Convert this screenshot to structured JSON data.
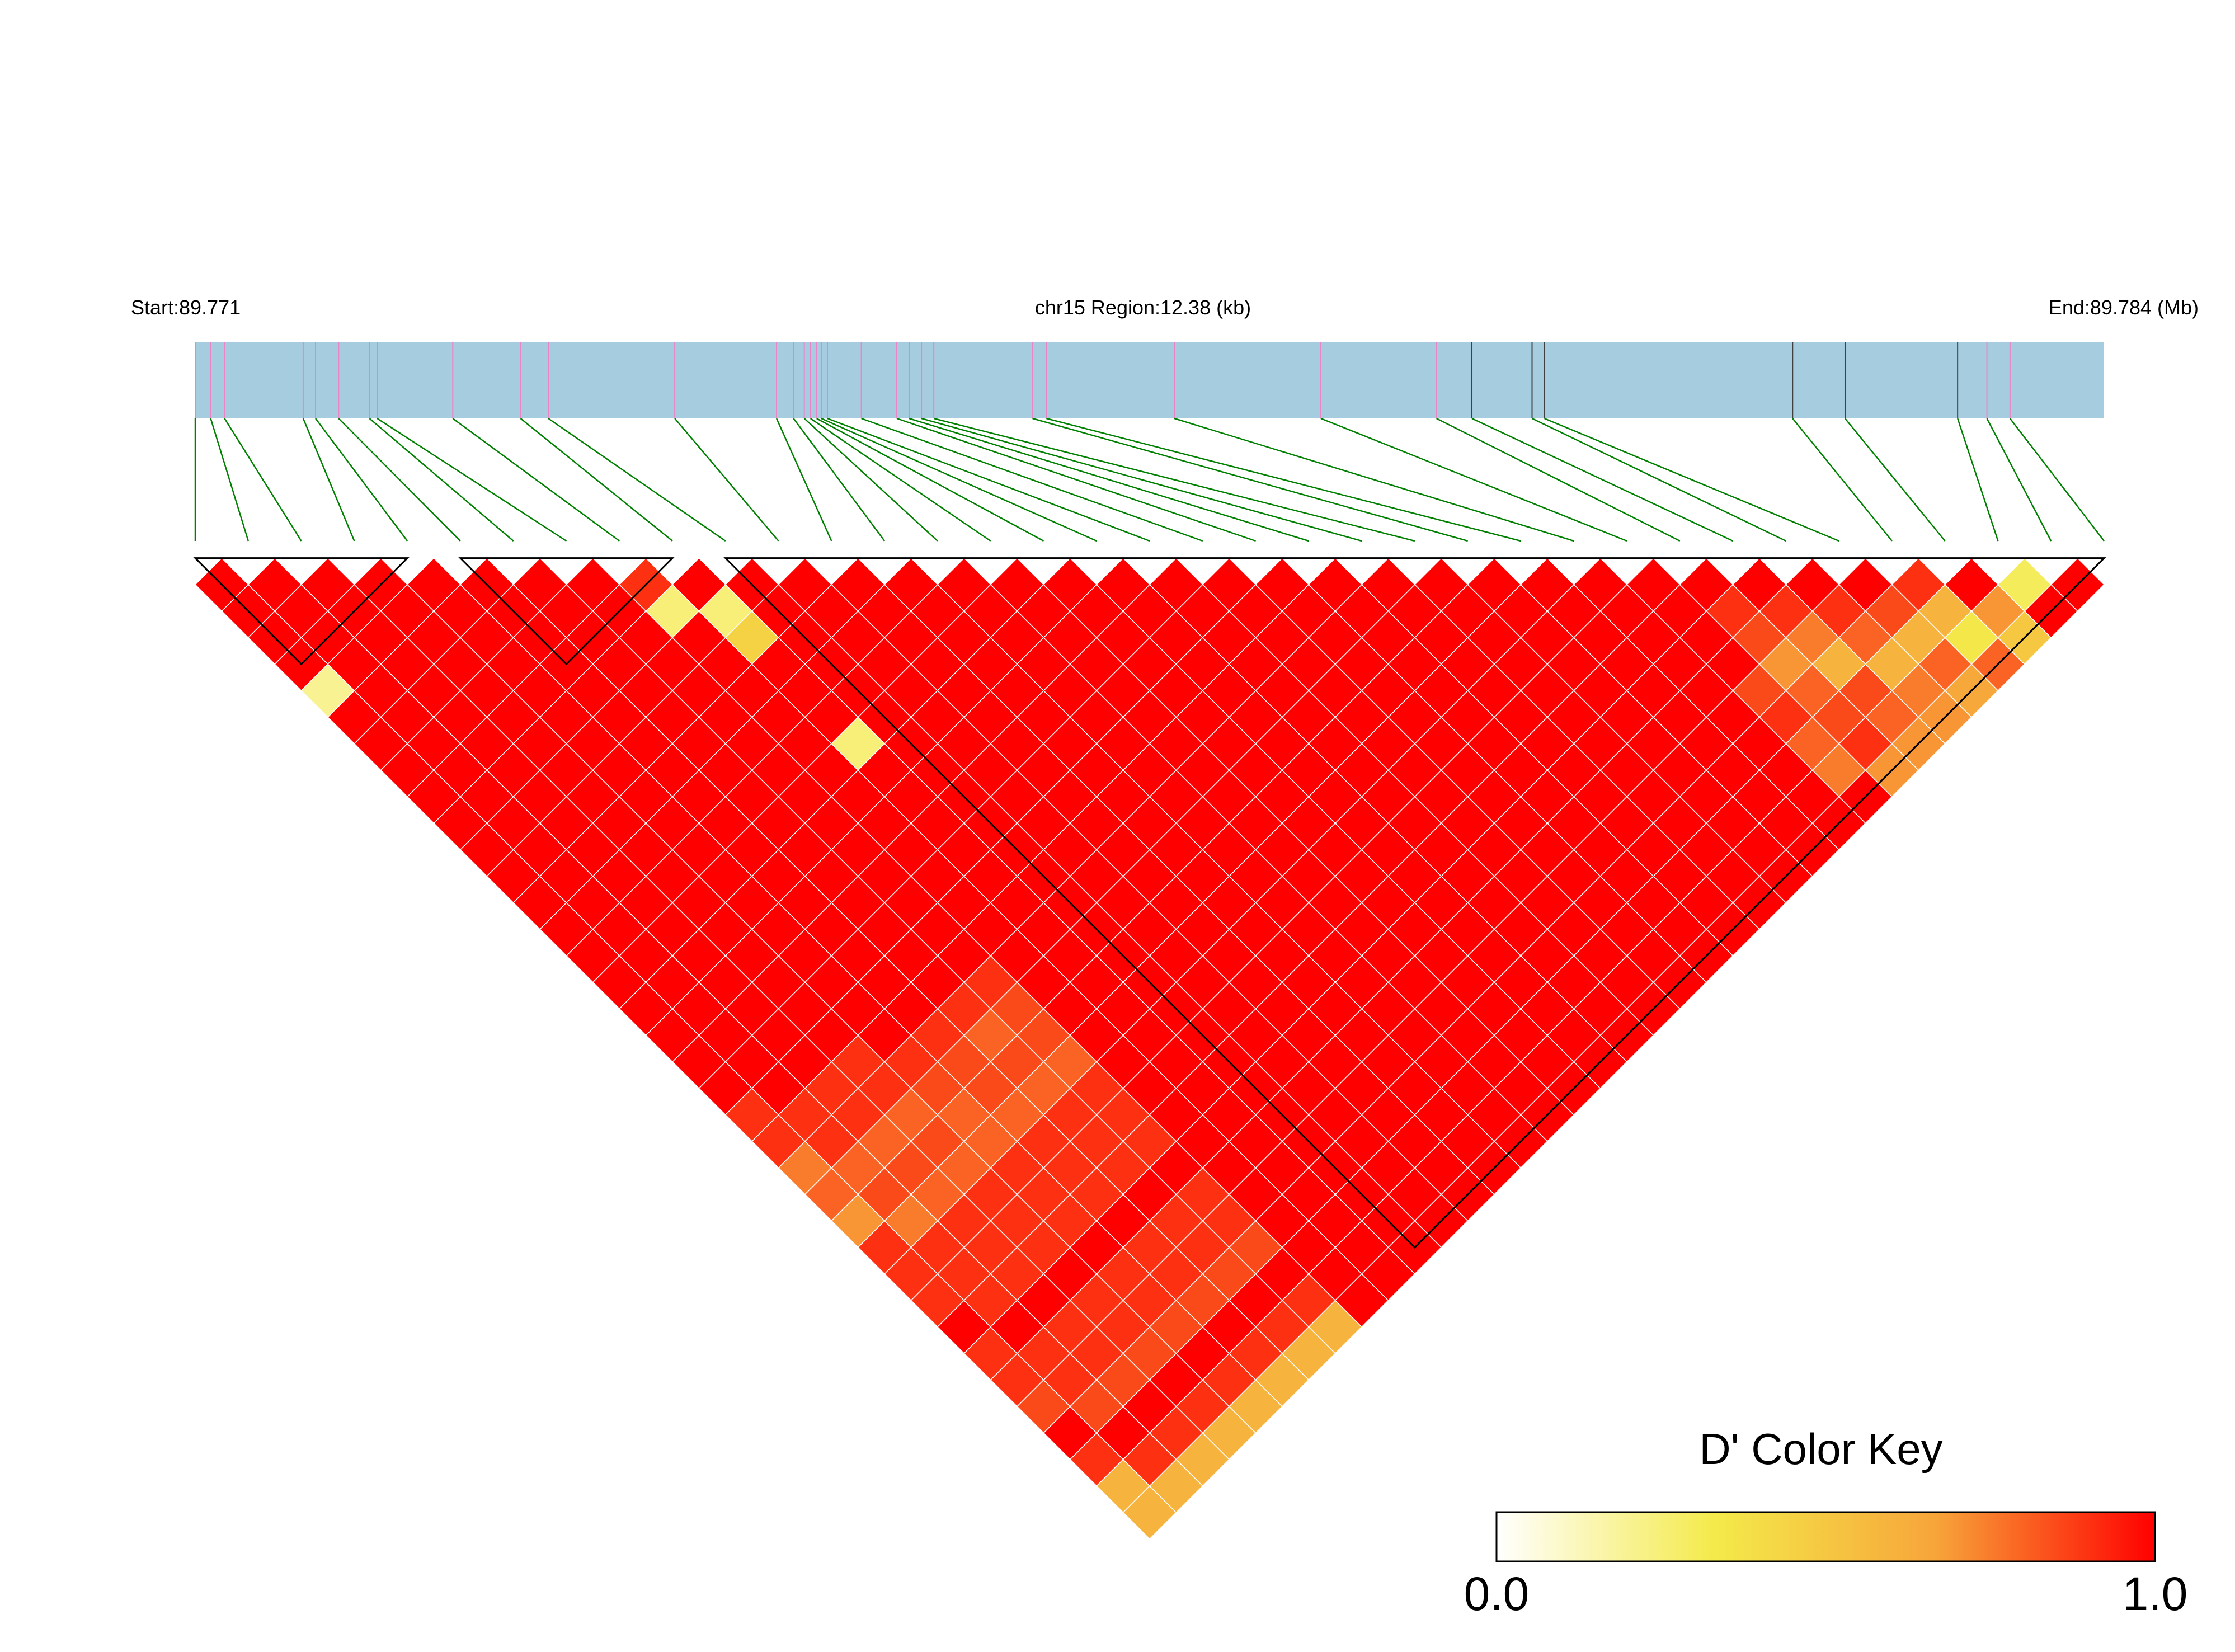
{
  "chart_data": {
    "type": "heatmap",
    "title": "",
    "header": {
      "start_label": "Start:89.771",
      "region_label": "chr15 Region:12.38 (kb)",
      "end_label": "End:89.784 (Mb)"
    },
    "region": {
      "chrom": "chr15",
      "start_mb": 89.771,
      "end_mb": 89.784,
      "length_kb": 12.38
    },
    "snp_positions_kb": [
      0.0,
      0.1,
      0.19,
      0.7,
      0.78,
      0.93,
      1.13,
      1.18,
      1.67,
      2.11,
      2.29,
      3.11,
      3.77,
      3.88,
      3.95,
      3.99,
      4.03,
      4.06,
      4.1,
      4.32,
      4.55,
      4.63,
      4.71,
      4.79,
      5.43,
      5.52,
      6.35,
      7.3,
      8.05,
      8.28,
      8.67,
      8.75,
      10.36,
      10.7,
      11.43,
      11.62,
      11.77
    ],
    "snp_markers": [
      "pink",
      "pink",
      "pink",
      "pink",
      "pink",
      "pink",
      "pink",
      "pink",
      "pink",
      "pink",
      "pink",
      "pink",
      "pink",
      "pink",
      "pink",
      "pink",
      "pink",
      "pink",
      "pink",
      "pink",
      "pink",
      "pink",
      "pink",
      "pink",
      "pink",
      "pink",
      "pink",
      "pink",
      "pink",
      "dark",
      "dark",
      "dark",
      "dark",
      "dark",
      "dark",
      "pink",
      "pink"
    ],
    "ld_matrix": {
      "measure": "D'",
      "encoding": "rows are SNP i (0-based), entries are D' for SNP i with SNP i+1, i+2, ...",
      "rows": [
        [
          1,
          1,
          1,
          1,
          0.2,
          1,
          1,
          1,
          1,
          1,
          1,
          1,
          1,
          1,
          1,
          1,
          1,
          1,
          1,
          1,
          0.9,
          0.9,
          0.75,
          0.8,
          0.7,
          0.9,
          0.9,
          0.9,
          1,
          0.9,
          0.9,
          0.85,
          1,
          0.9,
          0.6,
          0.6
        ],
        [
          1,
          1,
          1,
          1,
          1,
          1,
          1,
          1,
          1,
          1,
          1,
          1,
          1,
          1,
          1,
          1,
          1,
          1,
          1,
          1,
          0.9,
          0.9,
          0.8,
          0.85,
          0.75,
          0.9,
          0.9,
          0.9,
          1,
          0.9,
          0.9,
          0.85,
          1,
          0.9,
          0.6
        ],
        [
          1,
          1,
          1,
          1,
          1,
          1,
          1,
          1,
          1,
          1,
          1,
          1,
          1,
          1,
          1,
          1,
          1,
          1,
          1,
          0.9,
          0.9,
          0.8,
          0.85,
          0.8,
          0.9,
          0.9,
          0.9,
          1,
          0.9,
          0.9,
          0.85,
          1,
          0.9,
          0.6
        ],
        [
          1,
          1,
          1,
          1,
          1,
          1,
          1,
          1,
          1,
          1,
          1,
          1,
          1,
          1,
          1,
          1,
          1,
          1,
          0.9,
          0.9,
          0.8,
          0.85,
          0.8,
          0.9,
          0.9,
          0.9,
          1,
          0.9,
          0.9,
          0.85,
          1,
          0.9,
          0.6
        ],
        [
          1,
          1,
          1,
          1,
          1,
          1,
          1,
          1,
          1,
          1,
          1,
          1,
          1,
          1,
          1,
          1,
          1,
          1,
          0.9,
          0.85,
          0.8,
          0.8,
          0.9,
          0.9,
          0.9,
          1,
          0.9,
          0.9,
          0.85,
          1,
          0.9,
          0.6
        ],
        [
          1,
          1,
          1,
          1,
          1,
          1,
          1,
          1,
          1,
          1,
          1,
          1,
          1,
          1,
          1,
          1,
          1,
          0.9,
          0.85,
          0.85,
          0.8,
          0.9,
          0.9,
          0.9,
          1,
          0.9,
          0.9,
          0.85,
          1,
          0.9,
          0.6
        ],
        [
          1,
          1,
          1,
          1,
          1,
          1,
          1,
          1,
          1,
          1,
          1,
          1,
          1,
          1,
          1,
          1,
          0.9,
          0.8,
          0.85,
          0.8,
          0.9,
          0.9,
          0.9,
          1,
          0.9,
          0.9,
          0.85,
          1,
          0.9,
          0.6
        ],
        [
          1,
          1,
          1,
          1,
          1,
          1,
          1,
          1,
          1,
          1,
          1,
          1,
          1,
          1,
          1,
          0.9,
          0.85,
          0.85,
          0.8,
          0.9,
          0.9,
          0.9,
          1,
          0.9,
          0.9,
          0.85,
          1,
          0.9,
          0.6
        ],
        [
          0.9,
          0.25,
          1,
          1,
          1,
          1,
          1,
          1,
          1,
          1,
          1,
          1,
          1,
          1,
          1,
          1,
          1,
          1,
          1,
          1,
          1,
          1,
          1,
          1,
          1,
          1,
          1,
          1
        ],
        [
          1,
          0.25,
          0.45,
          1,
          1,
          1,
          0.25,
          1,
          1,
          1,
          1,
          1,
          1,
          1,
          1,
          1,
          1,
          1,
          1,
          1,
          1,
          1,
          1,
          1,
          1,
          1,
          1
        ],
        [
          1,
          1,
          1,
          1,
          1,
          1,
          1,
          1,
          1,
          1,
          1,
          1,
          1,
          1,
          1,
          1,
          1,
          1,
          1,
          1,
          1,
          1,
          1,
          1,
          1,
          1
        ],
        [
          1,
          1,
          1,
          1,
          1,
          1,
          1,
          1,
          1,
          1,
          1,
          1,
          1,
          1,
          1,
          1,
          1,
          1,
          1,
          1,
          1,
          1,
          1,
          1,
          1
        ],
        [
          1,
          1,
          1,
          1,
          1,
          1,
          1,
          1,
          1,
          1,
          1,
          1,
          1,
          1,
          1,
          1,
          1,
          1,
          1,
          1,
          1,
          1,
          1,
          1
        ],
        [
          1,
          1,
          1,
          1,
          1,
          1,
          1,
          1,
          1,
          1,
          1,
          1,
          1,
          1,
          1,
          1,
          1,
          1,
          1,
          1,
          1,
          1,
          1
        ],
        [
          1,
          1,
          1,
          1,
          1,
          1,
          1,
          1,
          1,
          1,
          1,
          1,
          1,
          1,
          1,
          1,
          1,
          1,
          1,
          1,
          1,
          1
        ],
        [
          1,
          1,
          1,
          1,
          1,
          1,
          1,
          1,
          1,
          1,
          1,
          1,
          1,
          1,
          1,
          1,
          1,
          1,
          1,
          1,
          1
        ],
        [
          1,
          1,
          1,
          1,
          1,
          1,
          1,
          1,
          1,
          1,
          1,
          1,
          1,
          1,
          1,
          1,
          1,
          1,
          1,
          1
        ],
        [
          1,
          1,
          1,
          1,
          1,
          1,
          1,
          1,
          1,
          1,
          1,
          1,
          1,
          1,
          1,
          1,
          1,
          1,
          1
        ],
        [
          1,
          1,
          1,
          1,
          1,
          1,
          1,
          1,
          1,
          1,
          1,
          1,
          1,
          1,
          1,
          1,
          1,
          1
        ],
        [
          1,
          1,
          1,
          1,
          1,
          1,
          1,
          1,
          1,
          1,
          1,
          1,
          1,
          1,
          1,
          1,
          1
        ],
        [
          1,
          1,
          1,
          1,
          1,
          1,
          1,
          1,
          1,
          1,
          1,
          1,
          1,
          1,
          1,
          1
        ],
        [
          1,
          1,
          1,
          1,
          1,
          1,
          1,
          1,
          1,
          1,
          1,
          1,
          1,
          1,
          1
        ],
        [
          1,
          1,
          1,
          1,
          1,
          1,
          1,
          1,
          1,
          1,
          1,
          1,
          1,
          1
        ],
        [
          1,
          1,
          1,
          1,
          1,
          1,
          1,
          1,
          1,
          1,
          1,
          1,
          1
        ],
        [
          1,
          1,
          1,
          1,
          1,
          1,
          1,
          1,
          1,
          1,
          1,
          1
        ],
        [
          1,
          1,
          1,
          1,
          1,
          1,
          1,
          1,
          1,
          1,
          1
        ],
        [
          1,
          1,
          1,
          1,
          1,
          1,
          1,
          1,
          1,
          1
        ],
        [
          1,
          1,
          1,
          1,
          0.85,
          0.9,
          0.8,
          0.75,
          1
        ],
        [
          1,
          0.9,
          0.85,
          0.7,
          0.8,
          0.85,
          0.9,
          0.7
        ],
        [
          1,
          0.9,
          0.75,
          0.6,
          0.85,
          0.8,
          0.7
        ],
        [
          1,
          0.9,
          0.8,
          0.6,
          0.75,
          0.7
        ],
        [
          1,
          0.85,
          0.6,
          0.8,
          0.65
        ],
        [
          0.9,
          0.6,
          0.35,
          0.8
        ],
        [
          1,
          0.7,
          0.5
        ],
        [
          0.3,
          1
        ],
        [
          1
        ]
      ],
      "blocks": [
        [
          0,
          4
        ],
        [
          5,
          9
        ],
        [
          10,
          36
        ]
      ]
    },
    "legend": {
      "title": "D' Color Key",
      "min_label": "0.0",
      "max_label": "1.0",
      "colors": [
        "#ffffff",
        "#f4ea4a",
        "#f7a53a",
        "#ff0000"
      ]
    },
    "colors": {
      "track_fill": "#a6cce0",
      "snp_line": "#ee82c8",
      "snp_line_dark": "#404040",
      "connector": "#008000",
      "grid": "#ffffff",
      "block_outline": "#000000"
    }
  }
}
